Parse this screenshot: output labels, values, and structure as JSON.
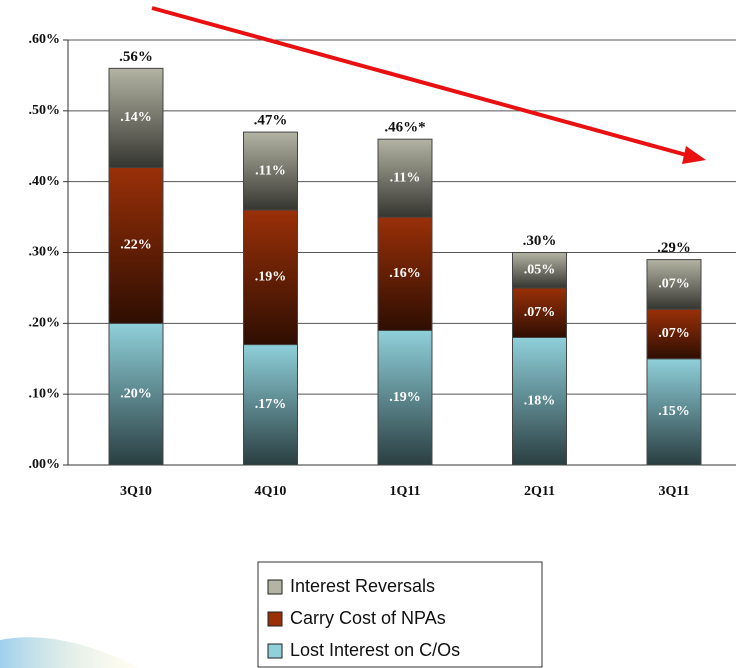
{
  "chart_data": {
    "type": "stacked_bar",
    "categories": [
      "3Q10",
      "4Q10",
      "1Q11",
      "2Q11",
      "3Q11"
    ],
    "series": [
      {
        "name": "Interest Reversals",
        "color": "#b4b4a4",
        "values": [
          0.14,
          0.11,
          0.11,
          0.05,
          0.07
        ],
        "value_labels": [
          ".14%",
          ".11%",
          ".11%",
          ".05%",
          ".07%"
        ]
      },
      {
        "name": "Carry Cost of NPAs",
        "color": "#9a3008",
        "values": [
          0.22,
          0.19,
          0.16,
          0.07,
          0.07
        ],
        "value_labels": [
          ".22%",
          ".19%",
          ".16%",
          ".07%",
          ".07%"
        ]
      },
      {
        "name": "Lost Interest on C/Os",
        "color": "#8fd0da",
        "values": [
          0.2,
          0.17,
          0.19,
          0.18,
          0.15
        ],
        "value_labels": [
          ".20%",
          ".17%",
          ".19%",
          ".18%",
          ".15%"
        ]
      }
    ],
    "total_labels": [
      ".56%",
      ".47%",
      ".46%*",
      ".30%",
      ".29%"
    ],
    "ylim": [
      0,
      0.6
    ],
    "yticks": [
      {
        "value": 0,
        "label": ".00%"
      },
      {
        "value": 0.1,
        "label": ".10%"
      },
      {
        "value": 0.2,
        "label": ".20%"
      },
      {
        "value": 0.3,
        "label": ".30%"
      },
      {
        "value": 0.4,
        "label": ".40%"
      },
      {
        "value": 0.5,
        "label": ".50%"
      },
      {
        "value": 0.6,
        "label": ".60%"
      }
    ],
    "grid": true
  }
}
